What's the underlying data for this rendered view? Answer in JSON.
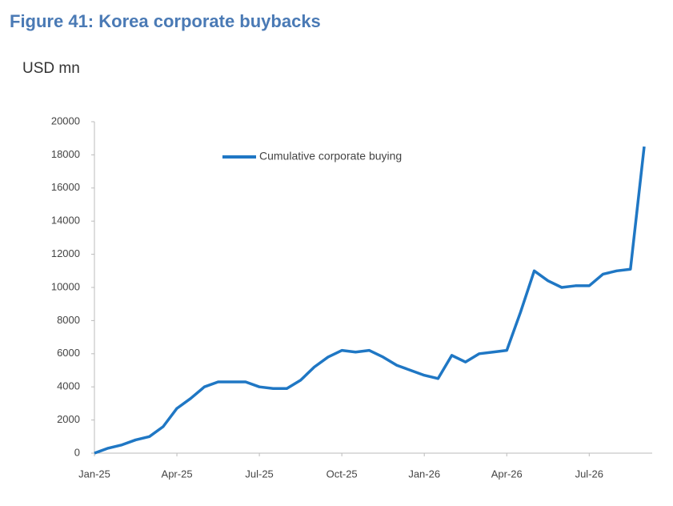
{
  "chart_data": {
    "type": "line",
    "title": "Figure 41: Korea corporate buybacks",
    "y_label": "USD mn",
    "x": [
      "Jan-25",
      null,
      null,
      null,
      null,
      null,
      "Apr-25",
      null,
      null,
      null,
      null,
      null,
      "Jul-25",
      null,
      null,
      null,
      null,
      null,
      "Oct-25",
      null,
      null,
      null,
      null,
      null,
      "Jan-26",
      null,
      null,
      null,
      null,
      null,
      "Apr-26",
      null,
      null,
      null,
      null,
      null,
      "Jul-26",
      null,
      null,
      null,
      null
    ],
    "series": [
      {
        "name": "Cumulative corporate buying",
        "color": "#1f77c4",
        "values": [
          0,
          300,
          500,
          800,
          1000,
          1600,
          2700,
          3300,
          4000,
          4300,
          4300,
          4300,
          4000,
          3900,
          3900,
          4400,
          5200,
          5800,
          6200,
          6100,
          6200,
          5800,
          5300,
          5000,
          4700,
          4500,
          5900,
          5500,
          6000,
          6100,
          6200,
          8500,
          11000,
          10400,
          10000,
          10100,
          10100,
          10800,
          11000,
          11100,
          18500
        ]
      }
    ],
    "ylim": [
      0,
      20000
    ],
    "yticks": [
      0,
      2000,
      4000,
      6000,
      8000,
      10000,
      12000,
      14000,
      16000,
      18000,
      20000
    ],
    "grid": false,
    "legend": "top-left"
  }
}
